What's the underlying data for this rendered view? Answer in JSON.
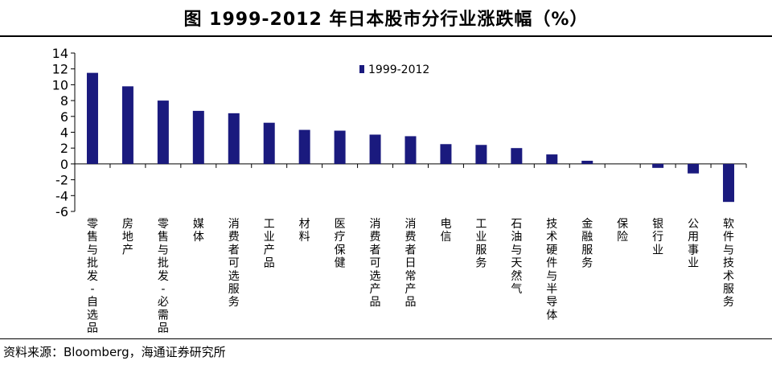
{
  "title": "图  1999-2012 年日本股市分行业涨跌幅（%）",
  "source": "资料来源：Bloomberg，海通证券研究所",
  "chart_data": {
    "type": "bar",
    "title": "图  1999-2012 年日本股市分行业涨跌幅（%）",
    "xlabel": "",
    "ylabel": "",
    "ylim": [
      -6,
      14
    ],
    "yticks": [
      14,
      12,
      10,
      8,
      6,
      4,
      2,
      0,
      -2,
      -4,
      -6
    ],
    "grid": false,
    "legend_position": "top-center",
    "bar_color": "#1a1a7e",
    "categories": [
      "零售与批发-自选品",
      "房地产",
      "零售与批发-必需品",
      "媒体",
      "消费者可选服务",
      "工业产品",
      "材料",
      "医疗保健",
      "消费者可选产品",
      "消费者日常产品",
      "电信",
      "工业服务",
      "石油与天然气",
      "技术硬件与半导体",
      "金融服务",
      "保险",
      "银行业",
      "公用事业",
      "软件与技术服务"
    ],
    "series": [
      {
        "name": "1999-2012",
        "values": [
          11.5,
          9.8,
          8.0,
          6.7,
          6.4,
          5.2,
          4.3,
          4.2,
          3.7,
          3.5,
          2.5,
          2.4,
          2.0,
          1.2,
          0.4,
          0.0,
          -0.5,
          -1.2,
          -4.8
        ]
      }
    ]
  }
}
